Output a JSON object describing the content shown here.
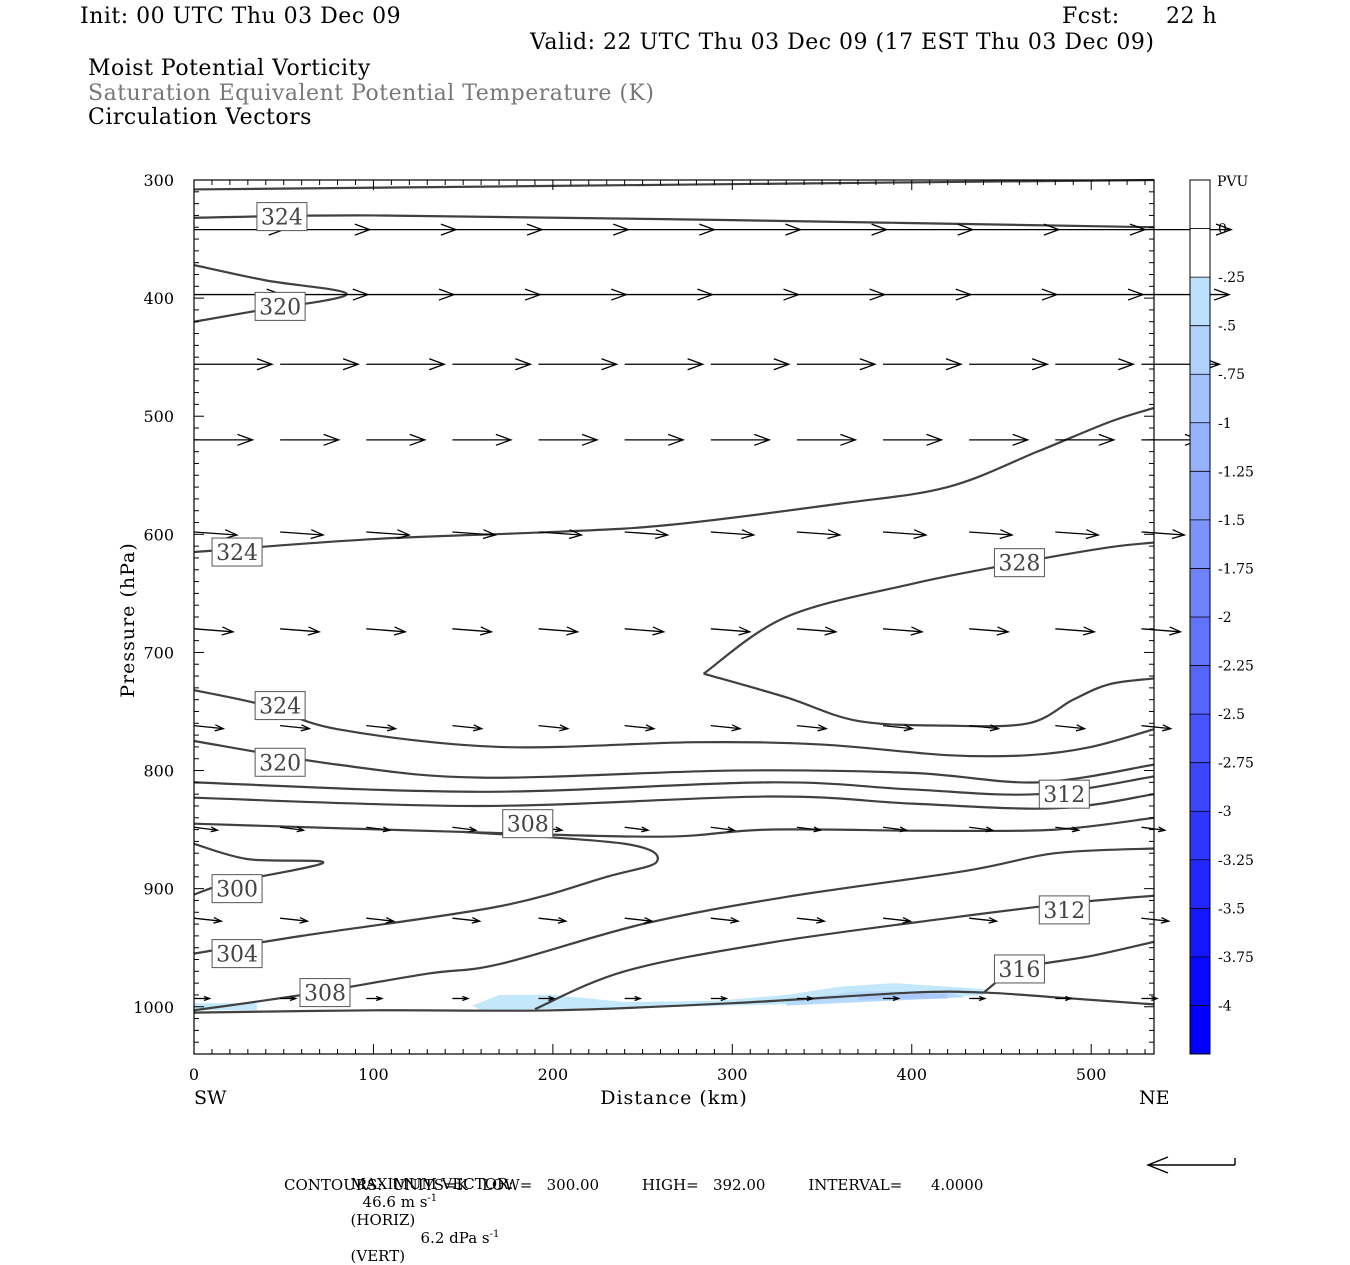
{
  "header": {
    "init": "Init: 00 UTC Thu 03 Dec 09",
    "fcst_label": "Fcst:",
    "fcst_value": "22 h",
    "valid": "Valid: 22 UTC Thu 03 Dec 09 (17 EST Thu 03 Dec 09)",
    "field1": "Moist Potential Vorticity",
    "field2": "Saturation Equivalent Potential Temperature (K)",
    "field3": "Circulation Vectors"
  },
  "footer": {
    "max_vector_label": "MAXIMUM VECTOR:",
    "max_vector_horiz": "46.6 m s",
    "horiz_tag": "(HORIZ)",
    "max_vector_vert": "6.2 dPa s",
    "vert_tag": "(VERT)",
    "contours_line": "CONTOURS:  UNITS=K   LOW=   300.00         HIGH=   392.00         INTERVAL=      4.0000"
  },
  "colors": {
    "contour": "#404040",
    "vector": "#000000",
    "pv_light": "#bfe6fb",
    "pv_mid": "#a9c9f4",
    "pv_dark": "#8f9ff0"
  },
  "chart_data": {
    "type": "contour",
    "xlabel": "Distance (km)",
    "ylabel": "Pressure (hPa)",
    "xlim": [
      0,
      535
    ],
    "ylim": [
      1040,
      300
    ],
    "x_ticks": [
      "0",
      "100",
      "200",
      "300",
      "400",
      "500"
    ],
    "x_tick_values": [
      0,
      100,
      200,
      300,
      400,
      500
    ],
    "y_ticks": [
      "300",
      "400",
      "500",
      "600",
      "700",
      "800",
      "900",
      "1000"
    ],
    "y_tick_values": [
      300,
      400,
      500,
      600,
      700,
      800,
      900,
      1000
    ],
    "left_end_label": "SW",
    "right_end_label": "NE",
    "colorbar": {
      "unit": "PVU",
      "labels": [
        "0",
        "-.25",
        "-.5",
        "-.75",
        "-1",
        "-1.25",
        "-1.5",
        "-1.75",
        "-2",
        "-2.25",
        "-2.5",
        "-2.75",
        "-3",
        "-3.25",
        "-3.5",
        "-3.75",
        "-4"
      ],
      "levels": [
        0,
        -0.25,
        -0.5,
        -0.75,
        -1,
        -1.25,
        -1.5,
        -1.75,
        -2,
        -2.25,
        -2.5,
        -2.75,
        -3,
        -3.25,
        -3.5,
        -3.75,
        -4
      ]
    },
    "contours": [
      {
        "label": "324",
        "points": [
          [
            0,
            332
          ],
          [
            100,
            330
          ],
          [
            300,
            334
          ],
          [
            535,
            340
          ]
        ],
        "label_at": [
          49,
          331
        ]
      },
      {
        "label": "",
        "points": [
          [
            0,
            308
          ],
          [
            200,
            305
          ],
          [
            400,
            302
          ],
          [
            535,
            300
          ]
        ]
      },
      {
        "label": "320",
        "points": [
          [
            0,
            372
          ],
          [
            40,
            385
          ],
          [
            85,
            397
          ],
          [
            30,
            412
          ],
          [
            0,
            420
          ]
        ],
        "label_at": [
          48,
          407
        ]
      },
      {
        "label": "324",
        "points": [
          [
            0,
            615
          ],
          [
            100,
            604
          ],
          [
            200,
            598
          ],
          [
            265,
            592
          ],
          [
            360,
            574
          ],
          [
            420,
            560
          ],
          [
            470,
            530
          ],
          [
            510,
            505
          ],
          [
            535,
            493
          ]
        ],
        "label_at": [
          24,
          615
        ]
      },
      {
        "label": "328",
        "points": [
          [
            284,
            718
          ],
          [
            330,
            670
          ],
          [
            400,
            642
          ],
          [
            460,
            624
          ],
          [
            510,
            611
          ],
          [
            535,
            607
          ]
        ],
        "label_at": [
          460,
          624
        ]
      },
      {
        "label": "",
        "points": [
          [
            284,
            718
          ],
          [
            330,
            738
          ],
          [
            370,
            758
          ],
          [
            420,
            762
          ],
          [
            465,
            760
          ],
          [
            490,
            740
          ],
          [
            510,
            727
          ],
          [
            535,
            722
          ]
        ]
      },
      {
        "label": "324",
        "points": [
          [
            0,
            732
          ],
          [
            40,
            745
          ],
          [
            80,
            765
          ],
          [
            170,
            780
          ],
          [
            280,
            776
          ],
          [
            350,
            778
          ],
          [
            420,
            787
          ],
          [
            465,
            787
          ],
          [
            500,
            780
          ],
          [
            535,
            765
          ]
        ],
        "label_at": [
          48,
          745
        ]
      },
      {
        "label": "320",
        "points": [
          [
            0,
            775
          ],
          [
            80,
            795
          ],
          [
            160,
            806
          ],
          [
            300,
            800
          ],
          [
            400,
            802
          ],
          [
            470,
            810
          ],
          [
            535,
            795
          ]
        ],
        "label_at": [
          48,
          793
        ]
      },
      {
        "label": "312",
        "points": [
          [
            0,
            810
          ],
          [
            160,
            818
          ],
          [
            320,
            810
          ],
          [
            400,
            816
          ],
          [
            470,
            820
          ],
          [
            535,
            805
          ]
        ],
        "label_at": [
          485,
          820
        ]
      },
      {
        "label": "",
        "points": [
          [
            0,
            823
          ],
          [
            160,
            830
          ],
          [
            320,
            822
          ],
          [
            400,
            828
          ],
          [
            480,
            832
          ],
          [
            535,
            820
          ]
        ]
      },
      {
        "label": "308",
        "points": [
          [
            0,
            845
          ],
          [
            150,
            852
          ],
          [
            260,
            856
          ],
          [
            320,
            850
          ],
          [
            410,
            851
          ],
          [
            480,
            850
          ],
          [
            535,
            840
          ]
        ],
        "label_at": [
          186,
          845
        ]
      },
      {
        "label": "",
        "points": [
          [
            0,
            862
          ],
          [
            30,
            875
          ],
          [
            72,
            878
          ],
          [
            20,
            895
          ],
          [
            0,
            905
          ]
        ],
        "label_at": [
          24,
          900
        ]
      },
      {
        "label": "300",
        "points": [
          [
            0,
            905
          ],
          [
            0,
            905
          ]
        ],
        "label_at": [
          24,
          900
        ]
      },
      {
        "label": "304",
        "points": [
          [
            0,
            955
          ],
          [
            60,
            940
          ],
          [
            170,
            915
          ],
          [
            230,
            890
          ],
          [
            258,
            877
          ],
          [
            240,
            862
          ],
          [
            150,
            852
          ]
        ],
        "label_at": [
          24,
          955
        ]
      },
      {
        "label": "308",
        "points": [
          [
            0,
            1003
          ],
          [
            60,
            990
          ],
          [
            130,
            972
          ],
          [
            170,
            964
          ],
          [
            250,
            930
          ],
          [
            330,
            907
          ],
          [
            430,
            885
          ],
          [
            480,
            870
          ],
          [
            535,
            866
          ]
        ],
        "label_at": [
          73,
          988
        ]
      },
      {
        "label": "312",
        "points": [
          [
            190,
            1002
          ],
          [
            240,
            970
          ],
          [
            320,
            946
          ],
          [
            420,
            925
          ],
          [
            490,
            912
          ],
          [
            535,
            906
          ]
        ],
        "label_at": [
          485,
          918
        ]
      },
      {
        "label": "316",
        "points": [
          [
            0,
            1005
          ],
          [
            100,
            1003
          ],
          [
            200,
            1003
          ],
          [
            300,
            997
          ],
          [
            400,
            988
          ],
          [
            440,
            988
          ],
          [
            480,
            992
          ],
          [
            535,
            998
          ]
        ],
        "label_at": [
          460,
          968
        ]
      },
      {
        "label": "",
        "points": [
          [
            440,
            988
          ],
          [
            460,
            968
          ],
          [
            500,
            957
          ],
          [
            535,
            945
          ]
        ]
      }
    ],
    "pv_shading": [
      {
        "level": -0.25,
        "points": [
          [
            0,
            997
          ],
          [
            35,
            997
          ],
          [
            35,
            1003
          ],
          [
            0,
            1003
          ]
        ]
      },
      {
        "level": -0.25,
        "points": [
          [
            155,
            999
          ],
          [
            170,
            990
          ],
          [
            200,
            990
          ],
          [
            240,
            996
          ],
          [
            290,
            995
          ],
          [
            330,
            990
          ],
          [
            360,
            983
          ],
          [
            390,
            980
          ],
          [
            440,
            985
          ],
          [
            440,
            990
          ],
          [
            330,
            998
          ],
          [
            160,
            1003
          ]
        ]
      },
      {
        "level": -0.5,
        "points": [
          [
            330,
            995
          ],
          [
            370,
            987
          ],
          [
            420,
            987
          ],
          [
            430,
            992
          ],
          [
            330,
            999
          ]
        ]
      },
      {
        "level": -0.75,
        "points": [
          [
            370,
            990
          ],
          [
            420,
            989
          ],
          [
            420,
            993
          ],
          [
            370,
            994
          ]
        ]
      }
    ],
    "vector_rows": [
      {
        "p": 342,
        "u": 46,
        "w": 0
      },
      {
        "p": 397,
        "u": 45,
        "w": 0
      },
      {
        "p": 456,
        "u": 40,
        "w": 0
      },
      {
        "p": 520,
        "u": 30,
        "w": 0
      },
      {
        "p": 598,
        "u": 22,
        "w": 1
      },
      {
        "p": 680,
        "u": 20,
        "w": 1
      },
      {
        "p": 762,
        "u": 15,
        "w": 1
      },
      {
        "p": 848,
        "u": 12,
        "w": 1
      },
      {
        "p": 925,
        "u": 14,
        "w": 1
      },
      {
        "p": 993,
        "u": 8,
        "w": 0
      }
    ],
    "vector_columns_km": [
      0,
      48,
      96,
      144,
      192,
      240,
      288,
      336,
      384,
      432,
      480,
      528
    ]
  }
}
